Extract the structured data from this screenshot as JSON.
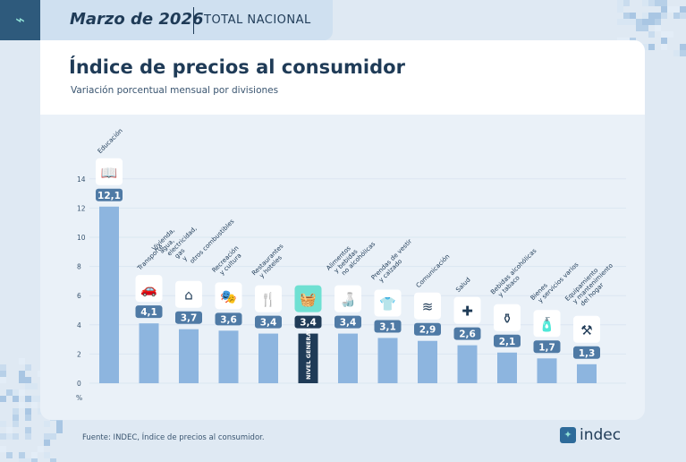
{
  "header": {
    "date": "Marzo de 2026",
    "scope": "TOTAL NACIONAL"
  },
  "title": "Índice de precios al consumidor",
  "subtitle": "Variación porcentual mensual por divisiones",
  "source": "Fuente: INDEC, Índice de precios al consumidor.",
  "brand": "indec",
  "chart_data": {
    "type": "bar",
    "ylabel": "%",
    "ylim": [
      0,
      14
    ],
    "yticks": [
      0,
      2,
      4,
      6,
      8,
      10,
      12,
      14
    ],
    "grid": true,
    "categories": [
      "Educación",
      "Transporte",
      "Vivienda, agua, electricidad, gas y otros combustibles",
      "Recreación y cultura",
      "Restaurantes y hoteles",
      "NIVEL GENERAL",
      "Alimentos y bebidas no alcohólicas",
      "Prendas de vestir y calzado",
      "Comunicación",
      "Salud",
      "Bebidas alcohólicas y tabaco",
      "Bienes y servicios varios",
      "Equipamiento y mantenimiento del hogar"
    ],
    "values": [
      12.1,
      4.1,
      3.7,
      3.6,
      3.4,
      3.4,
      3.4,
      3.1,
      2.9,
      2.6,
      2.1,
      1.7,
      1.3
    ],
    "value_labels": [
      "12,1",
      "4,1",
      "3,7",
      "3,6",
      "3,4",
      "3,4",
      "3,4",
      "3,1",
      "2,9",
      "2,6",
      "2,1",
      "1,7",
      "1,3"
    ],
    "icons": [
      "book-icon",
      "car-wrench-icon",
      "house-utilities-icon",
      "theater-masks-icon",
      "fork-hotel-icon",
      "basket-icon",
      "food-bottle-icon",
      "clothes-icon",
      "wifi-icon",
      "plus-cross-icon",
      "bottle-icon",
      "spray-comb-icon",
      "tools-icon"
    ],
    "colors": {
      "bar": "#8db5df",
      "highlight_bar": "#1f3b57",
      "label_bg": "#4f7aa5",
      "highlight_label_bg": "#1f3b57",
      "highlight_icon_bg": "#6fe0d2"
    }
  }
}
